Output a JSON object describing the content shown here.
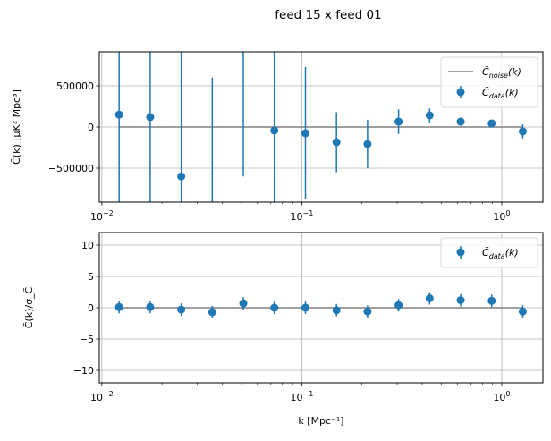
{
  "chart_data": [
    {
      "type": "scatter",
      "figure_title": "feed 15 x feed 01",
      "panel": "top",
      "xscale": "log",
      "xlim": [
        0.00971,
        1.607
      ],
      "ylim": [
        -913000,
        913000
      ],
      "xlabel": "",
      "ylabel": "C̃(k) [μK² Mpc³]",
      "grid": true,
      "xticks": [
        {
          "value": 0.01,
          "base": "10",
          "exp": "−2"
        },
        {
          "value": 0.1,
          "base": "10",
          "exp": "−1"
        },
        {
          "value": 1,
          "base": "10",
          "exp": "0"
        }
      ],
      "yticks": [
        {
          "value": 500000,
          "label": "500000"
        },
        {
          "value": 0,
          "label": "0"
        },
        {
          "value": -500000,
          "label": "−500000"
        }
      ],
      "legend": {
        "position": "top-right",
        "entries": [
          {
            "label": "C̃",
            "sub": "noise",
            "suffix": "(k)",
            "kind": "line"
          },
          {
            "label": "C̃",
            "sub": "data",
            "suffix": "(k)",
            "kind": "errorbar"
          }
        ]
      },
      "noise_line": {
        "name": "C̃noise(k)",
        "y": 0,
        "color": "#808080"
      },
      "series": [
        {
          "name": "C̃data(k)",
          "color": "#1f77b4",
          "x": [
            0.0122,
            0.01745,
            0.02495,
            0.03567,
            0.051,
            0.0729,
            0.1043,
            0.1491,
            0.2132,
            0.3048,
            0.4358,
            0.6231,
            0.8909,
            1.274
          ],
          "y": [
            150000,
            120000,
            -600000,
            -1400000,
            1400000,
            -43000,
            -76000,
            -185000,
            -207000,
            65000,
            141000,
            65000,
            43000,
            -54000
          ],
          "yerr": [
            2000000,
            2000000,
            2000000,
            2000000,
            2000000,
            2000000,
            804000,
            365000,
            295000,
            150000,
            85000,
            50000,
            30000,
            85000
          ]
        }
      ]
    },
    {
      "type": "scatter",
      "panel": "bottom",
      "xscale": "log",
      "xlim": [
        0.00971,
        1.607
      ],
      "ylim": [
        -12,
        12
      ],
      "xlabel": "k [Mpc⁻¹]",
      "ylabel": "C̃(k)/σ_C̃",
      "grid": true,
      "xticks": [
        {
          "value": 0.01,
          "base": "10",
          "exp": "−2"
        },
        {
          "value": 0.1,
          "base": "10",
          "exp": "−1"
        },
        {
          "value": 1,
          "base": "10",
          "exp": "0"
        }
      ],
      "yticks": [
        {
          "value": 10,
          "label": "10"
        },
        {
          "value": 5,
          "label": "5"
        },
        {
          "value": 0,
          "label": "0"
        },
        {
          "value": -5,
          "label": "−5"
        },
        {
          "value": -10,
          "label": "−10"
        }
      ],
      "legend": {
        "position": "top-right",
        "entries": [
          {
            "label": "C̃",
            "sub": "data",
            "suffix": "(k)",
            "kind": "errorbar"
          }
        ]
      },
      "noise_line": {
        "y": 0,
        "color": "#808080"
      },
      "series": [
        {
          "name": "C̃data(k)",
          "color": "#1f77b4",
          "x": [
            0.0122,
            0.01745,
            0.02495,
            0.03567,
            0.051,
            0.0729,
            0.1043,
            0.1491,
            0.2132,
            0.3048,
            0.4358,
            0.6231,
            0.8909,
            1.274
          ],
          "y": [
            0.1,
            0.1,
            -0.3,
            -0.7,
            0.7,
            0.0,
            0.0,
            -0.4,
            -0.6,
            0.4,
            1.5,
            1.2,
            1.1,
            -0.6
          ],
          "yerr": [
            1,
            1,
            1,
            1,
            1,
            1,
            1,
            1,
            1,
            1,
            1,
            1,
            1,
            1
          ]
        }
      ]
    }
  ]
}
